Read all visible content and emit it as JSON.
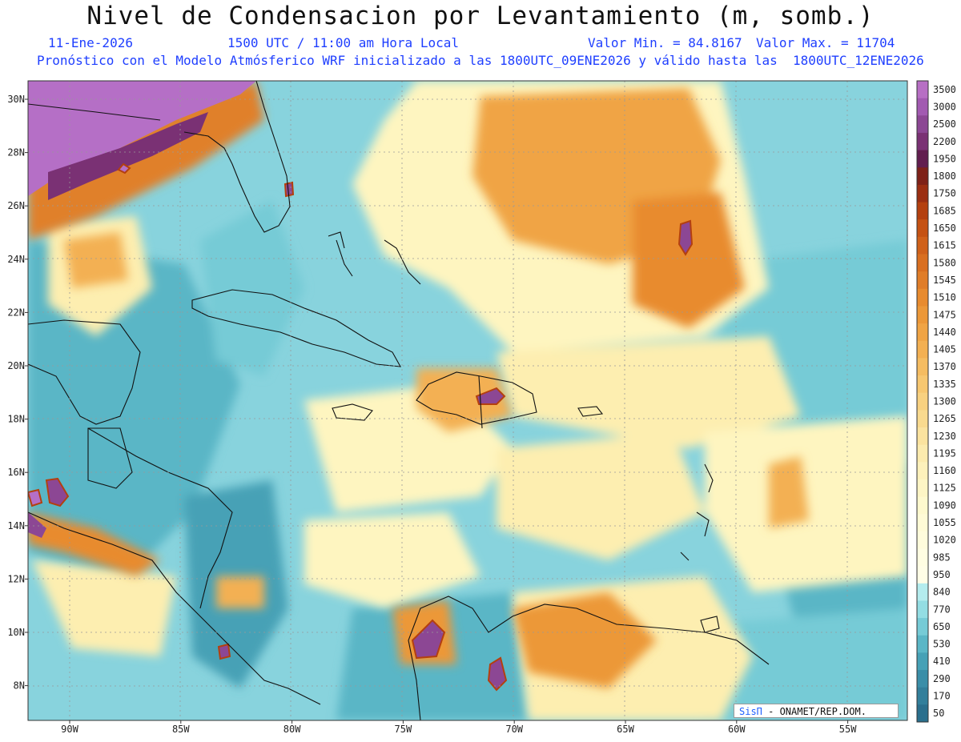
{
  "title": "Nivel de Condensacion por Levantamiento (m, somb.)",
  "info": {
    "date": "11-Ene-2026",
    "time": "1500 UTC / 11:00 am Hora Local",
    "min": "Valor Min. = 84.8167",
    "max": "Valor Max. = 11704",
    "forecast": "Pronóstico con el Modelo Atmósferico WRF inicializado a las 1800UTC_09ENE2026 y válido hasta las  1800UTC_12ENE2026"
  },
  "axes": {
    "lon_labels": [
      "90W",
      "85W",
      "80W",
      "75W",
      "70W",
      "65W",
      "60W",
      "55W"
    ],
    "lat_labels": [
      "30N",
      "28N",
      "26N",
      "24N",
      "22N",
      "20N",
      "18N",
      "16N",
      "14N",
      "12N",
      "10N",
      "8N"
    ]
  },
  "colorbar": {
    "labels": [
      "3500",
      "3000",
      "2500",
      "2200",
      "1950",
      "1800",
      "1750",
      "1685",
      "1650",
      "1615",
      "1580",
      "1545",
      "1510",
      "1475",
      "1440",
      "1405",
      "1370",
      "1335",
      "1300",
      "1265",
      "1230",
      "1195",
      "1160",
      "1125",
      "1090",
      "1055",
      "1020",
      "985",
      "950",
      "840",
      "770",
      "650",
      "530",
      "410",
      "290",
      "170",
      "50"
    ],
    "colors": [
      "#b76fc4",
      "#a25ab1",
      "#8c4794",
      "#7a3174",
      "#621e4f",
      "#7e2118",
      "#9b2e12",
      "#b4400f",
      "#c55213",
      "#d0611a",
      "#d96f20",
      "#e07d28",
      "#e88b2e",
      "#ec9838",
      "#f0a444",
      "#f3b052",
      "#f5bc61",
      "#f7c770",
      "#f8d180",
      "#f9da8f",
      "#fbe39f",
      "#fcebae",
      "#fdf1bb",
      "#fdf5c5",
      "#fef9ce",
      "#fffbd6",
      "#fffcdc",
      "#fffde2",
      "#fffde6",
      "#b4ecee",
      "#93dde3",
      "#76cbd6",
      "#5ab6c6",
      "#46a1b6",
      "#3a8ea8",
      "#327f9b",
      "#2a6f8d"
    ]
  },
  "credit": {
    "brand": "SisΠ",
    "text": " - ONAMET/REP.DOM."
  },
  "colors": {
    "ocean_base": "#88d3dd",
    "yellow": "#fef5c0",
    "orange": "#ec9a3c",
    "darkorange": "#c65715",
    "purple": "#8c4794",
    "teal": "#4a9fb2"
  }
}
